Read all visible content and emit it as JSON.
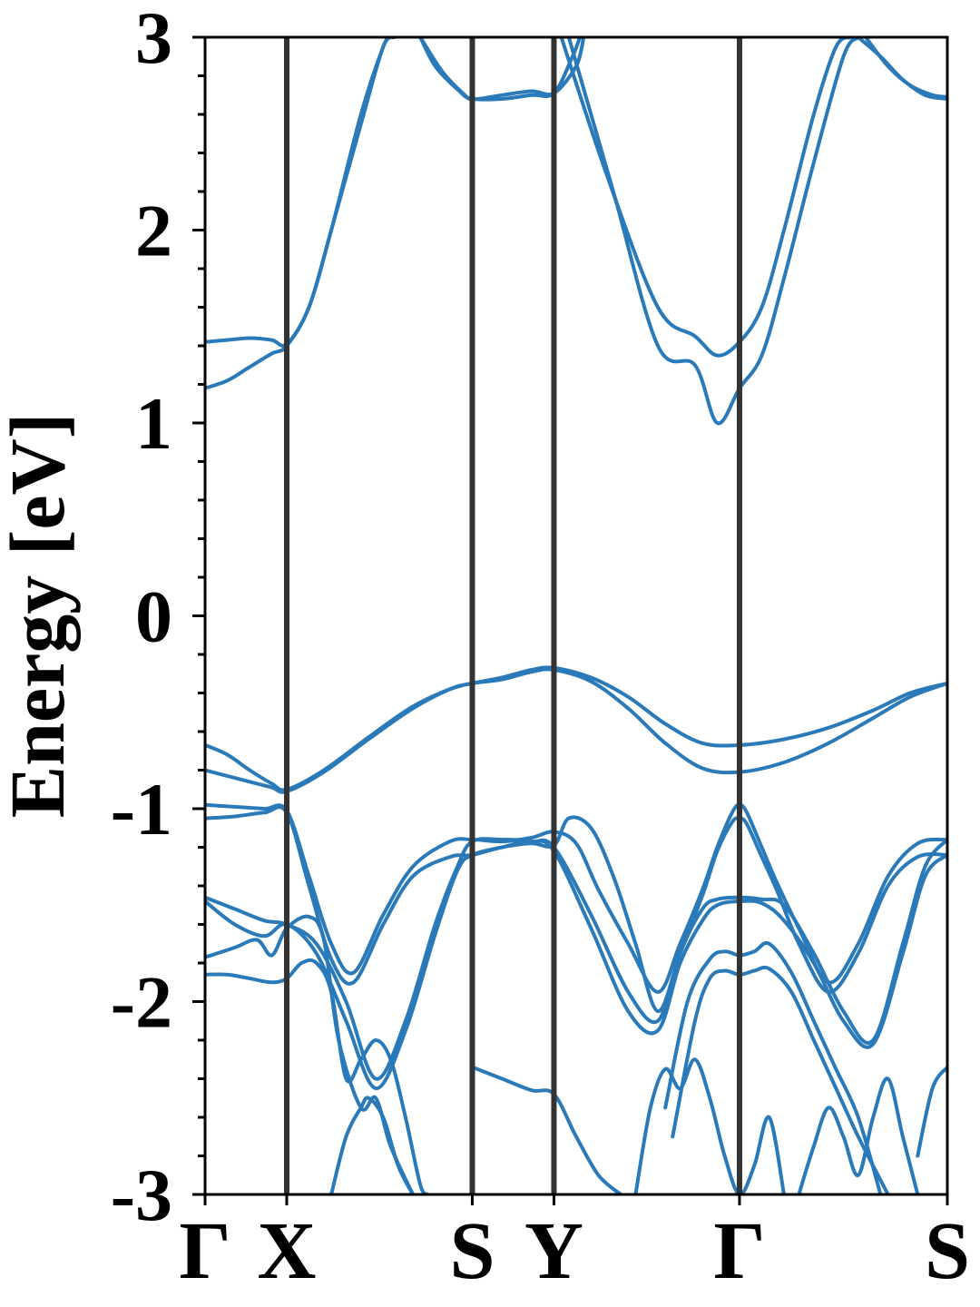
{
  "chart_data": {
    "type": "line",
    "title": "",
    "xlabel": "",
    "ylabel": "Energy [eV]",
    "ylim": [
      -3,
      3
    ],
    "y_ticks": [
      "-3",
      "-2",
      "-1",
      "0",
      "1",
      "2",
      "3"
    ],
    "y_minor_step": 0.2,
    "grid": false,
    "k_path": [
      {
        "label": "Γ",
        "position": 0.0
      },
      {
        "label": "X",
        "position": 0.11
      },
      {
        "label": "S",
        "position": 0.36
      },
      {
        "label": "Y",
        "position": 0.47
      },
      {
        "label": "Γ",
        "position": 0.72
      },
      {
        "label": "S",
        "position": 1.0
      }
    ],
    "high_symmetry_line_color": "#333333",
    "band_color": "#2a7ab9",
    "bands": [
      {
        "x": [
          0,
          0.03,
          0.06,
          0.09,
          0.11,
          0.14,
          0.17,
          0.21,
          0.24,
          0.255
        ],
        "y": [
          1.42,
          1.43,
          1.44,
          1.43,
          1.41,
          1.6,
          2.0,
          2.55,
          2.95,
          3.0
        ]
      },
      {
        "x": [
          0,
          0.03,
          0.06,
          0.09,
          0.11,
          0.14,
          0.17,
          0.21,
          0.24,
          0.25
        ],
        "y": [
          1.18,
          1.22,
          1.29,
          1.36,
          1.4,
          1.6,
          2.0,
          2.6,
          2.95,
          3.0
        ]
      },
      {
        "x": [
          0.29,
          0.31,
          0.34,
          0.36,
          0.4,
          0.44,
          0.47,
          0.5,
          0.51
        ],
        "y": [
          3.0,
          2.85,
          2.73,
          2.68,
          2.7,
          2.72,
          2.71,
          2.85,
          3.0
        ]
      },
      {
        "x": [
          0.29,
          0.32,
          0.35,
          0.36,
          0.4,
          0.44,
          0.47,
          0.495,
          0.505
        ],
        "y": [
          3.0,
          2.82,
          2.7,
          2.68,
          2.68,
          2.7,
          2.71,
          2.9,
          3.0
        ]
      },
      {
        "x": [
          0.49,
          0.55,
          0.61,
          0.66,
          0.69,
          0.72,
          0.75,
          0.78,
          0.82,
          0.86,
          0.88
        ],
        "y": [
          3.0,
          2.2,
          1.4,
          1.3,
          1.0,
          1.18,
          1.35,
          1.75,
          2.35,
          2.9,
          3.0
        ]
      },
      {
        "x": [
          0.48,
          0.54,
          0.61,
          0.66,
          0.69,
          0.72,
          0.75,
          0.78,
          0.82,
          0.85,
          0.87
        ],
        "y": [
          3.0,
          2.3,
          1.6,
          1.45,
          1.35,
          1.42,
          1.6,
          2.0,
          2.6,
          2.95,
          3.0
        ]
      },
      {
        "x": [
          0.88,
          0.91,
          0.94,
          0.97,
          1.0
        ],
        "y": [
          3.0,
          2.9,
          2.78,
          2.7,
          2.68
        ]
      },
      {
        "x": [
          0.89,
          0.92,
          0.95,
          0.98,
          1.0
        ],
        "y": [
          3.0,
          2.85,
          2.75,
          2.7,
          2.69
        ]
      },
      {
        "x": [
          0,
          0.03,
          0.06,
          0.09,
          0.11,
          0.16,
          0.22,
          0.28,
          0.33,
          0.36,
          0.4,
          0.44,
          0.47,
          0.52,
          0.57,
          0.62,
          0.67,
          0.72,
          0.78,
          0.84,
          0.9,
          0.95,
          1.0
        ],
        "y": [
          -0.67,
          -0.72,
          -0.8,
          -0.87,
          -0.9,
          -0.8,
          -0.63,
          -0.47,
          -0.38,
          -0.35,
          -0.32,
          -0.28,
          -0.27,
          -0.32,
          -0.42,
          -0.56,
          -0.66,
          -0.67,
          -0.64,
          -0.58,
          -0.49,
          -0.4,
          -0.35
        ]
      },
      {
        "x": [
          0,
          0.03,
          0.06,
          0.09,
          0.11,
          0.16,
          0.22,
          0.28,
          0.33,
          0.36,
          0.4,
          0.44,
          0.47,
          0.52,
          0.57,
          0.62,
          0.67,
          0.72,
          0.78,
          0.84,
          0.9,
          0.95,
          1.0
        ],
        "y": [
          -0.8,
          -0.83,
          -0.86,
          -0.89,
          -0.91,
          -0.81,
          -0.64,
          -0.48,
          -0.38,
          -0.35,
          -0.33,
          -0.29,
          -0.28,
          -0.34,
          -0.48,
          -0.66,
          -0.79,
          -0.81,
          -0.76,
          -0.66,
          -0.53,
          -0.42,
          -0.35
        ]
      },
      {
        "x": [
          0,
          0.04,
          0.08,
          0.11,
          0.14,
          0.17,
          0.2,
          0.24,
          0.28,
          0.33,
          0.36,
          0.4,
          0.44,
          0.47,
          0.5,
          0.53,
          0.57,
          0.61,
          0.64,
          0.67,
          0.69,
          0.71,
          0.72,
          0.73,
          0.75,
          0.77,
          0.8,
          0.84,
          0.88,
          0.92,
          0.96,
          1.0
        ],
        "y": [
          -0.98,
          -0.99,
          -1.0,
          -1.01,
          -1.35,
          -1.7,
          -1.85,
          -1.55,
          -1.3,
          -1.17,
          -1.16,
          -1.17,
          -1.15,
          -1.12,
          -1.18,
          -1.42,
          -1.7,
          -1.95,
          -1.7,
          -1.42,
          -1.2,
          -1.02,
          -0.98,
          -1.02,
          -1.2,
          -1.38,
          -1.62,
          -1.9,
          -1.7,
          -1.35,
          -1.18,
          -1.16
        ]
      },
      {
        "x": [
          0,
          0.04,
          0.08,
          0.11,
          0.14,
          0.17,
          0.2,
          0.24,
          0.28,
          0.33,
          0.36,
          0.4,
          0.44,
          0.47,
          0.49,
          0.52,
          0.55,
          0.58,
          0.61,
          0.64,
          0.67,
          0.69,
          0.71,
          0.72,
          0.73,
          0.75,
          0.77,
          0.8,
          0.84,
          0.88,
          0.92,
          0.96,
          1.0
        ],
        "y": [
          -1.05,
          -1.04,
          -1.02,
          -1.02,
          -1.4,
          -1.78,
          -1.9,
          -1.6,
          -1.35,
          -1.25,
          -1.24,
          -1.2,
          -1.18,
          -1.19,
          -1.05,
          -1.1,
          -1.35,
          -1.7,
          -2.05,
          -1.75,
          -1.45,
          -1.22,
          -1.07,
          -1.05,
          -1.08,
          -1.25,
          -1.42,
          -1.7,
          -1.95,
          -1.75,
          -1.4,
          -1.25,
          -1.24
        ]
      },
      {
        "x": [
          0,
          0.04,
          0.08,
          0.11,
          0.15,
          0.19,
          0.23,
          0.27,
          0.31,
          0.34,
          0.36,
          0.4,
          0.44,
          0.47,
          0.52,
          0.57,
          0.61,
          0.64,
          0.67,
          0.69,
          0.72,
          0.75,
          0.78,
          0.82,
          0.86,
          0.9,
          0.94,
          0.97,
          1.0
        ],
        "y": [
          -1.46,
          -1.52,
          -1.58,
          -1.6,
          -1.7,
          -2.0,
          -2.4,
          -2.1,
          -1.6,
          -1.3,
          -1.17,
          -1.16,
          -1.17,
          -1.2,
          -1.55,
          -1.95,
          -2.1,
          -1.75,
          -1.52,
          -1.47,
          -1.46,
          -1.47,
          -1.5,
          -1.75,
          -2.05,
          -2.2,
          -1.7,
          -1.3,
          -1.16
        ]
      },
      {
        "x": [
          0,
          0.04,
          0.08,
          0.11,
          0.15,
          0.19,
          0.23,
          0.27,
          0.31,
          0.34,
          0.36,
          0.4,
          0.44,
          0.47,
          0.52,
          0.57,
          0.61,
          0.64,
          0.67,
          0.69,
          0.72,
          0.75,
          0.78,
          0.82,
          0.86,
          0.9,
          0.94,
          0.97,
          1.0
        ],
        "y": [
          -1.48,
          -1.6,
          -1.66,
          -1.6,
          -1.75,
          -2.1,
          -2.45,
          -2.15,
          -1.65,
          -1.32,
          -1.24,
          -1.2,
          -1.17,
          -1.22,
          -1.62,
          -2.05,
          -2.15,
          -1.8,
          -1.58,
          -1.5,
          -1.48,
          -1.49,
          -1.58,
          -1.8,
          -2.1,
          -2.22,
          -1.75,
          -1.35,
          -1.24
        ]
      },
      {
        "x": [
          0,
          0.04,
          0.07,
          0.09,
          0.11,
          0.14,
          0.16,
          0.18,
          0.21,
          0.23,
          0.25,
          0.28
        ],
        "y": [
          -1.77,
          -1.72,
          -1.68,
          -1.76,
          -1.62,
          -1.56,
          -1.68,
          -2.2,
          -2.55,
          -2.5,
          -2.75,
          -3.0
        ]
      },
      {
        "x": [
          0,
          0.03,
          0.06,
          0.09,
          0.11,
          0.13,
          0.15,
          0.17,
          0.19,
          0.21,
          0.23,
          0.25,
          0.27,
          0.29,
          0.3
        ],
        "y": [
          -1.86,
          -1.86,
          -1.88,
          -1.9,
          -1.88,
          -1.8,
          -1.8,
          -1.95,
          -2.4,
          -2.3,
          -2.2,
          -2.3,
          -2.6,
          -2.95,
          -3.0
        ]
      },
      {
        "x": [
          0.62,
          0.65,
          0.68,
          0.7,
          0.72,
          0.74,
          0.76,
          0.79,
          0.82,
          0.85,
          0.88,
          0.91
        ],
        "y": [
          -2.55,
          -2.0,
          -1.78,
          -1.74,
          -1.76,
          -1.74,
          -1.7,
          -1.85,
          -2.1,
          -2.35,
          -2.6,
          -3.0
        ]
      },
      {
        "x": [
          0.63,
          0.66,
          0.68,
          0.7,
          0.72,
          0.74,
          0.76,
          0.79,
          0.82,
          0.85,
          0.88,
          0.92
        ],
        "y": [
          -2.7,
          -2.1,
          -1.88,
          -1.84,
          -1.86,
          -1.84,
          -1.83,
          -1.95,
          -2.2,
          -2.45,
          -2.7,
          -3.0
        ]
      },
      {
        "x": [
          0.36,
          0.4,
          0.44,
          0.47,
          0.5,
          0.53,
          0.56
        ],
        "y": [
          -2.34,
          -2.4,
          -2.46,
          -2.48,
          -2.7,
          -2.9,
          -3.0
        ]
      },
      {
        "x": [
          0.96,
          0.98,
          1.0
        ],
        "y": [
          -2.8,
          -2.45,
          -2.34
        ]
      },
      {
        "x": [
          0.17,
          0.19,
          0.21,
          0.22,
          0.24,
          0.26,
          0.28
        ],
        "y": [
          -3.0,
          -2.7,
          -2.55,
          -2.5,
          -2.6,
          -2.85,
          -3.0
        ]
      },
      {
        "x": [
          0.58,
          0.6,
          0.62,
          0.64,
          0.66,
          0.68,
          0.7,
          0.72,
          0.74,
          0.76,
          0.78
        ],
        "y": [
          -3.0,
          -2.55,
          -2.35,
          -2.45,
          -2.3,
          -2.5,
          -2.8,
          -3.0,
          -2.85,
          -2.6,
          -3.0
        ]
      },
      {
        "x": [
          0.8,
          0.82,
          0.84,
          0.86,
          0.88,
          0.9,
          0.92,
          0.94,
          0.96
        ],
        "y": [
          -3.0,
          -2.75,
          -2.55,
          -2.7,
          -2.9,
          -2.6,
          -2.4,
          -2.7,
          -3.0
        ]
      }
    ]
  }
}
